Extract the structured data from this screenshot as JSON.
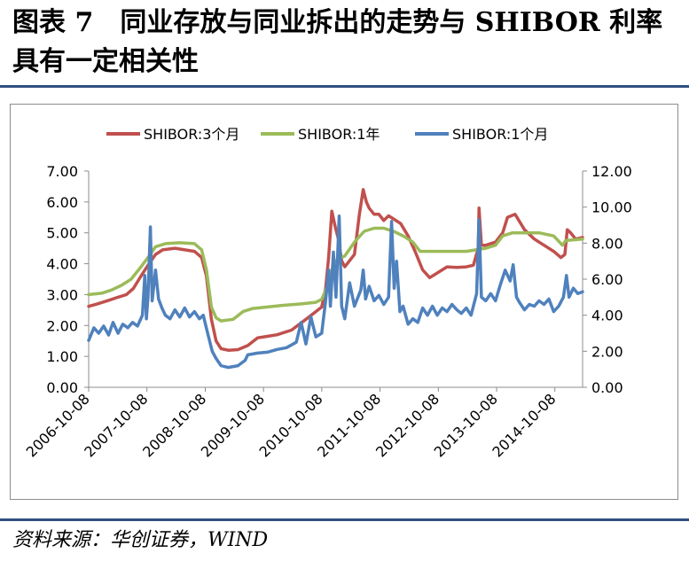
{
  "header": {
    "title": "图表 7　同业存放与同业拆出的走势与 SHIBOR 利率具有一定相关性"
  },
  "footer": {
    "source": "资料来源：华创证券，WIND"
  },
  "chart_data": {
    "type": "line",
    "title": "",
    "xlabel": "",
    "ylabel": "",
    "legend_placement": "top",
    "grid": false,
    "x_ticks": [
      "2006-10-08",
      "2007-10-08",
      "2008-10-08",
      "2009-10-08",
      "2010-10-08",
      "2011-10-08",
      "2012-10-08",
      "2013-10-08",
      "2014-10-08"
    ],
    "x_range": [
      "2006-10-08",
      "2015-03-31"
    ],
    "y_left": {
      "ylim": [
        0,
        7
      ],
      "ticks": [
        "0.00",
        "1.00",
        "2.00",
        "3.00",
        "4.00",
        "5.00",
        "6.00",
        "7.00"
      ]
    },
    "y_right": {
      "ylim": [
        0,
        12
      ],
      "ticks": [
        "0.00",
        "2.00",
        "4.00",
        "6.00",
        "8.00",
        "10.00",
        "12.00"
      ]
    },
    "series": [
      {
        "name": "SHIBOR:3个月",
        "color": "#c0504d",
        "axis": "left",
        "points": [
          [
            "2006-10-08",
            2.62
          ],
          [
            "2006-12-01",
            2.7
          ],
          [
            "2007-02-01",
            2.8
          ],
          [
            "2007-04-01",
            2.9
          ],
          [
            "2007-06-01",
            3.0
          ],
          [
            "2007-07-15",
            3.2
          ],
          [
            "2007-09-01",
            3.6
          ],
          [
            "2007-10-15",
            3.95
          ],
          [
            "2007-12-01",
            4.3
          ],
          [
            "2008-01-15",
            4.45
          ],
          [
            "2008-04-01",
            4.5
          ],
          [
            "2008-06-01",
            4.45
          ],
          [
            "2008-08-01",
            4.4
          ],
          [
            "2008-09-15",
            4.2
          ],
          [
            "2008-10-15",
            3.6
          ],
          [
            "2008-11-15",
            2.2
          ],
          [
            "2008-12-15",
            1.5
          ],
          [
            "2009-01-15",
            1.25
          ],
          [
            "2009-03-01",
            1.2
          ],
          [
            "2009-05-01",
            1.22
          ],
          [
            "2009-07-01",
            1.35
          ],
          [
            "2009-09-01",
            1.6
          ],
          [
            "2009-11-01",
            1.65
          ],
          [
            "2010-01-01",
            1.7
          ],
          [
            "2010-04-01",
            1.85
          ],
          [
            "2010-07-01",
            2.2
          ],
          [
            "2010-09-01",
            2.45
          ],
          [
            "2010-10-08",
            2.6
          ],
          [
            "2010-11-01",
            3.2
          ],
          [
            "2010-11-20",
            4.2
          ],
          [
            "2010-12-10",
            5.7
          ],
          [
            "2010-12-31",
            5.2
          ],
          [
            "2011-01-20",
            4.8
          ],
          [
            "2011-02-10",
            4.1
          ],
          [
            "2011-03-01",
            3.9
          ],
          [
            "2011-04-01",
            4.1
          ],
          [
            "2011-05-01",
            4.3
          ],
          [
            "2011-06-01",
            5.6
          ],
          [
            "2011-06-25",
            6.4
          ],
          [
            "2011-07-15",
            6.0
          ],
          [
            "2011-08-01",
            5.8
          ],
          [
            "2011-09-01",
            5.6
          ],
          [
            "2011-10-01",
            5.6
          ],
          [
            "2011-11-01",
            5.4
          ],
          [
            "2011-12-01",
            5.55
          ],
          [
            "2012-01-01",
            5.45
          ],
          [
            "2012-02-15",
            5.3
          ],
          [
            "2012-04-01",
            4.9
          ],
          [
            "2012-05-15",
            4.4
          ],
          [
            "2012-07-01",
            3.8
          ],
          [
            "2012-08-15",
            3.55
          ],
          [
            "2012-10-01",
            3.7
          ],
          [
            "2012-12-01",
            3.9
          ],
          [
            "2013-02-01",
            3.88
          ],
          [
            "2013-04-01",
            3.9
          ],
          [
            "2013-05-15",
            3.95
          ],
          [
            "2013-06-15",
            4.5
          ],
          [
            "2013-06-20",
            5.8
          ],
          [
            "2013-07-05",
            4.6
          ],
          [
            "2013-08-01",
            4.6
          ],
          [
            "2013-10-01",
            4.7
          ],
          [
            "2013-11-15",
            5.0
          ],
          [
            "2013-12-15",
            5.5
          ],
          [
            "2014-02-01",
            5.6
          ],
          [
            "2014-04-01",
            5.1
          ],
          [
            "2014-06-01",
            4.8
          ],
          [
            "2014-08-01",
            4.6
          ],
          [
            "2014-10-01",
            4.4
          ],
          [
            "2014-11-15",
            4.2
          ],
          [
            "2014-12-10",
            4.3
          ],
          [
            "2014-12-25",
            5.1
          ],
          [
            "2015-01-15",
            5.0
          ],
          [
            "2015-02-15",
            4.8
          ],
          [
            "2015-03-31",
            4.85
          ]
        ]
      },
      {
        "name": "SHIBOR:1年",
        "color": "#9bbb59",
        "axis": "left",
        "points": [
          [
            "2006-10-08",
            3.0
          ],
          [
            "2007-01-01",
            3.05
          ],
          [
            "2007-03-01",
            3.15
          ],
          [
            "2007-05-01",
            3.3
          ],
          [
            "2007-07-01",
            3.5
          ],
          [
            "2007-09-01",
            3.9
          ],
          [
            "2007-10-15",
            4.2
          ],
          [
            "2007-12-01",
            4.55
          ],
          [
            "2008-02-01",
            4.65
          ],
          [
            "2008-05-01",
            4.68
          ],
          [
            "2008-08-01",
            4.65
          ],
          [
            "2008-09-15",
            4.45
          ],
          [
            "2008-10-15",
            3.8
          ],
          [
            "2008-11-15",
            2.6
          ],
          [
            "2008-12-15",
            2.25
          ],
          [
            "2009-01-15",
            2.15
          ],
          [
            "2009-04-01",
            2.2
          ],
          [
            "2009-06-01",
            2.45
          ],
          [
            "2009-08-01",
            2.55
          ],
          [
            "2009-11-01",
            2.6
          ],
          [
            "2010-02-01",
            2.65
          ],
          [
            "2010-06-01",
            2.7
          ],
          [
            "2010-09-01",
            2.75
          ],
          [
            "2010-10-08",
            2.85
          ],
          [
            "2010-11-15",
            3.3
          ],
          [
            "2010-12-15",
            3.9
          ],
          [
            "2011-01-15",
            4.15
          ],
          [
            "2011-03-01",
            4.25
          ],
          [
            "2011-05-01",
            4.7
          ],
          [
            "2011-07-01",
            5.05
          ],
          [
            "2011-09-01",
            5.15
          ],
          [
            "2011-11-01",
            5.15
          ],
          [
            "2012-01-01",
            5.05
          ],
          [
            "2012-03-01",
            4.9
          ],
          [
            "2012-05-01",
            4.7
          ],
          [
            "2012-06-15",
            4.4
          ],
          [
            "2012-08-01",
            4.4
          ],
          [
            "2012-10-01",
            4.4
          ],
          [
            "2013-01-01",
            4.4
          ],
          [
            "2013-04-01",
            4.4
          ],
          [
            "2013-06-01",
            4.45
          ],
          [
            "2013-08-01",
            4.5
          ],
          [
            "2013-10-01",
            4.6
          ],
          [
            "2013-11-15",
            4.9
          ],
          [
            "2014-01-15",
            5.0
          ],
          [
            "2014-04-01",
            5.0
          ],
          [
            "2014-07-01",
            5.0
          ],
          [
            "2014-10-01",
            4.9
          ],
          [
            "2014-11-25",
            4.6
          ],
          [
            "2014-12-15",
            4.75
          ],
          [
            "2015-03-31",
            4.8
          ]
        ]
      },
      {
        "name": "SHIBOR:1个月",
        "color": "#4f81bd",
        "axis": "right",
        "points": [
          [
            "2006-10-08",
            2.6
          ],
          [
            "2006-11-10",
            3.3
          ],
          [
            "2006-12-10",
            3.0
          ],
          [
            "2007-01-10",
            3.4
          ],
          [
            "2007-02-10",
            2.9
          ],
          [
            "2007-03-10",
            3.6
          ],
          [
            "2007-04-10",
            3.0
          ],
          [
            "2007-05-10",
            3.5
          ],
          [
            "2007-06-10",
            3.3
          ],
          [
            "2007-07-10",
            3.6
          ],
          [
            "2007-08-10",
            3.4
          ],
          [
            "2007-09-10",
            4.0
          ],
          [
            "2007-09-25",
            6.2
          ],
          [
            "2007-10-05",
            3.8
          ],
          [
            "2007-10-15",
            5.0
          ],
          [
            "2007-10-30",
            8.9
          ],
          [
            "2007-11-10",
            4.8
          ],
          [
            "2007-12-01",
            6.5
          ],
          [
            "2007-12-20",
            4.9
          ],
          [
            "2008-01-10",
            4.4
          ],
          [
            "2008-02-01",
            4.0
          ],
          [
            "2008-03-01",
            3.8
          ],
          [
            "2008-04-01",
            4.3
          ],
          [
            "2008-05-01",
            3.9
          ],
          [
            "2008-06-01",
            4.4
          ],
          [
            "2008-07-01",
            3.9
          ],
          [
            "2008-08-01",
            4.2
          ],
          [
            "2008-09-01",
            3.8
          ],
          [
            "2008-09-25",
            4.0
          ],
          [
            "2008-10-20",
            3.1
          ],
          [
            "2008-11-20",
            2.0
          ],
          [
            "2008-12-15",
            1.6
          ],
          [
            "2009-01-15",
            1.2
          ],
          [
            "2009-03-01",
            1.1
          ],
          [
            "2009-05-01",
            1.2
          ],
          [
            "2009-06-15",
            1.5
          ],
          [
            "2009-07-01",
            1.8
          ],
          [
            "2009-09-01",
            1.9
          ],
          [
            "2009-11-01",
            1.95
          ],
          [
            "2010-01-01",
            2.1
          ],
          [
            "2010-03-01",
            2.2
          ],
          [
            "2010-05-01",
            2.5
          ],
          [
            "2010-06-01",
            3.6
          ],
          [
            "2010-07-01",
            2.4
          ],
          [
            "2010-08-01",
            3.9
          ],
          [
            "2010-09-01",
            2.8
          ],
          [
            "2010-10-08",
            3.0
          ],
          [
            "2010-11-01",
            4.8
          ],
          [
            "2010-11-20",
            6.5
          ],
          [
            "2010-12-01",
            4.5
          ],
          [
            "2010-12-20",
            7.5
          ],
          [
            "2011-01-05",
            5.0
          ],
          [
            "2011-01-25",
            9.5
          ],
          [
            "2011-02-10",
            4.5
          ],
          [
            "2011-03-01",
            3.8
          ],
          [
            "2011-04-01",
            5.8
          ],
          [
            "2011-05-01",
            4.5
          ],
          [
            "2011-06-10",
            5.4
          ],
          [
            "2011-06-25",
            6.5
          ],
          [
            "2011-07-10",
            4.9
          ],
          [
            "2011-08-01",
            5.6
          ],
          [
            "2011-09-01",
            4.8
          ],
          [
            "2011-10-01",
            5.1
          ],
          [
            "2011-11-01",
            4.6
          ],
          [
            "2011-12-01",
            5.0
          ],
          [
            "2011-12-20",
            9.2
          ],
          [
            "2012-01-05",
            5.5
          ],
          [
            "2012-01-20",
            7.0
          ],
          [
            "2012-02-10",
            4.2
          ],
          [
            "2012-03-01",
            4.5
          ],
          [
            "2012-04-01",
            3.5
          ],
          [
            "2012-05-01",
            3.8
          ],
          [
            "2012-06-01",
            3.6
          ],
          [
            "2012-07-01",
            4.4
          ],
          [
            "2012-08-01",
            4.0
          ],
          [
            "2012-09-01",
            4.5
          ],
          [
            "2012-10-01",
            4.0
          ],
          [
            "2012-11-01",
            4.4
          ],
          [
            "2012-12-01",
            4.2
          ],
          [
            "2013-01-01",
            4.6
          ],
          [
            "2013-02-01",
            4.3
          ],
          [
            "2013-03-01",
            4.1
          ],
          [
            "2013-04-01",
            4.4
          ],
          [
            "2013-05-01",
            4.0
          ],
          [
            "2013-06-05",
            5.2
          ],
          [
            "2013-06-20",
            9.3
          ],
          [
            "2013-07-05",
            5.0
          ],
          [
            "2013-08-01",
            4.8
          ],
          [
            "2013-09-01",
            5.2
          ],
          [
            "2013-10-01",
            4.8
          ],
          [
            "2013-11-01",
            5.7
          ],
          [
            "2013-12-01",
            6.5
          ],
          [
            "2014-01-01",
            5.9
          ],
          [
            "2014-01-20",
            6.8
          ],
          [
            "2014-02-10",
            5.0
          ],
          [
            "2014-03-01",
            4.7
          ],
          [
            "2014-04-01",
            4.3
          ],
          [
            "2014-05-01",
            4.6
          ],
          [
            "2014-06-01",
            4.5
          ],
          [
            "2014-07-01",
            4.8
          ],
          [
            "2014-08-01",
            4.6
          ],
          [
            "2014-09-01",
            4.9
          ],
          [
            "2014-10-01",
            4.2
          ],
          [
            "2014-11-01",
            4.5
          ],
          [
            "2014-12-01",
            5.0
          ],
          [
            "2014-12-20",
            6.2
          ],
          [
            "2015-01-05",
            5.0
          ],
          [
            "2015-02-01",
            5.5
          ],
          [
            "2015-03-01",
            5.2
          ],
          [
            "2015-03-31",
            5.3
          ]
        ]
      }
    ]
  }
}
